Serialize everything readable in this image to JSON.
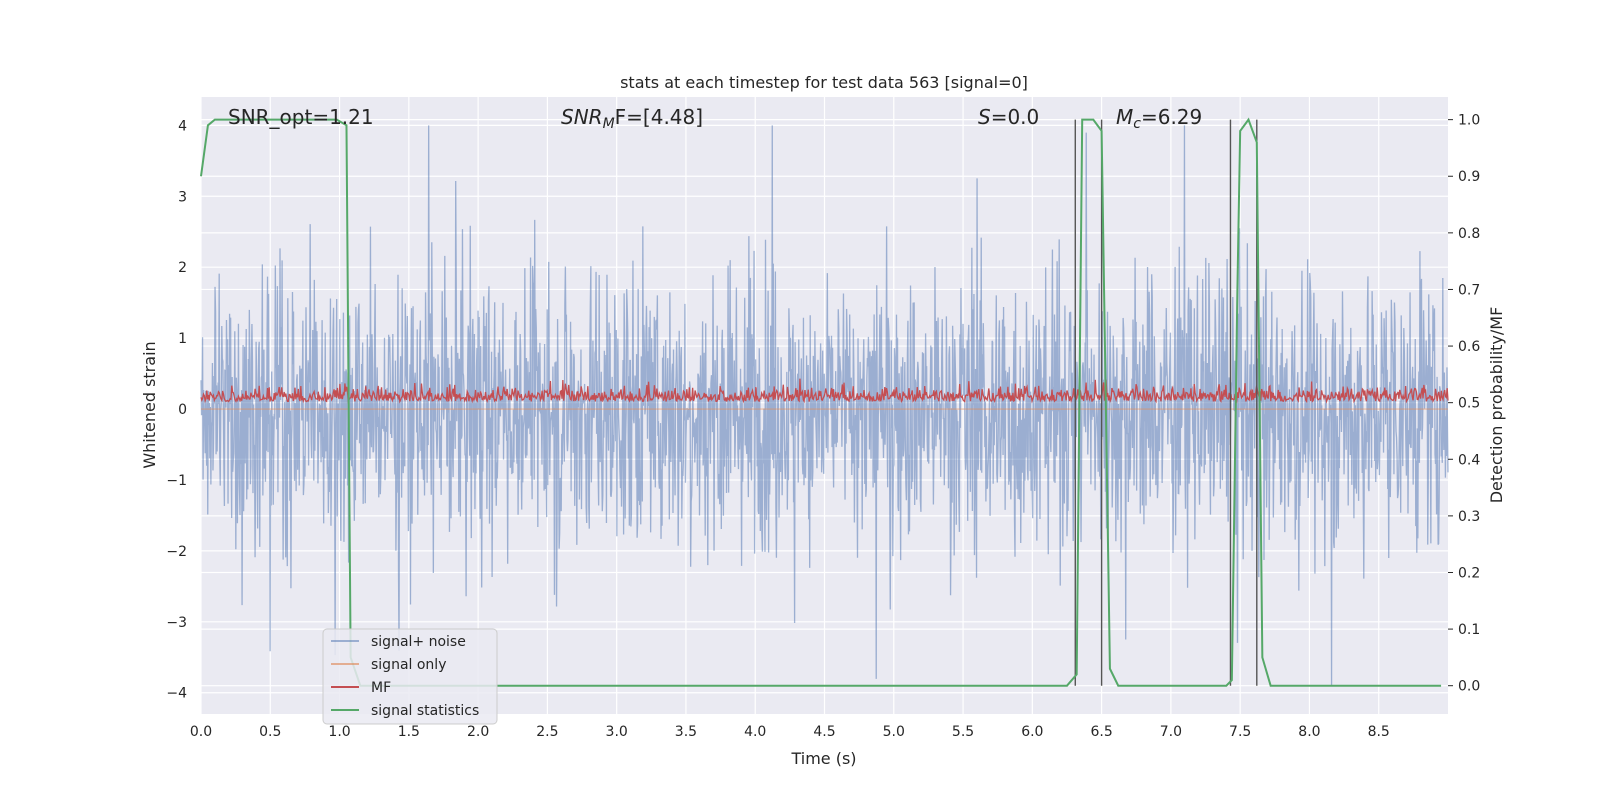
{
  "chart_data": {
    "type": "line",
    "title": "stats at each timestep for test data 563 [signal=0]",
    "xlabel": "Time (s)",
    "ylabel": "Whitened strain",
    "y2label": "Detection probability/MF",
    "xlim": [
      0,
      9.0
    ],
    "ylim": [
      -4.3,
      4.4
    ],
    "y2lim": [
      -0.05,
      1.04
    ],
    "xticks": [
      "0.0",
      "0.5",
      "1.0",
      "1.5",
      "2.0",
      "2.5",
      "3.0",
      "3.5",
      "4.0",
      "4.5",
      "5.0",
      "5.5",
      "6.0",
      "6.5",
      "7.0",
      "7.5",
      "8.0",
      "8.5"
    ],
    "yticks": [
      "−4",
      "−3",
      "−2",
      "−1",
      "0",
      "1",
      "2",
      "3",
      "4"
    ],
    "y2ticks": [
      "0.0",
      "0.1",
      "0.2",
      "0.3",
      "0.4",
      "0.5",
      "0.6",
      "0.7",
      "0.8",
      "0.9",
      "1.0"
    ],
    "grid": true,
    "legend_position": "lower-left",
    "annotations": {
      "snr_opt": "SNR_opt=1.21",
      "snr_mf_sym": "SNR",
      "snr_mf_sub": "M",
      "snr_mf_rest": "F=[4.48]",
      "s_sym": "S",
      "s_rest": "=0.0",
      "mc_sym": "M",
      "mc_sub": "c",
      "mc_rest": "=6.29"
    },
    "series": [
      {
        "name": "signal+ noise",
        "color": "#4c72b0",
        "axis": "left",
        "description_values": "dense noise, sampled at 4096 Hz, amplitude roughly within [-3.9, 4.0]"
      },
      {
        "name": "signal only",
        "color": "#dd8452",
        "axis": "left",
        "x": [
          0,
          9.0
        ],
        "y": [
          0,
          0
        ]
      },
      {
        "name": "MF",
        "color": "#c44e52",
        "axis": "right",
        "description_values": "noisy trace fluctuating between about 0.50 and 0.55 on the right axis"
      },
      {
        "name": "signal statistics",
        "color": "#55a868",
        "axis": "right",
        "x": [
          0.0,
          0.05,
          0.1,
          0.2,
          0.5,
          0.8,
          0.98,
          1.05,
          1.08,
          1.15,
          1.4,
          2.0,
          3.0,
          4.0,
          5.0,
          6.0,
          6.25,
          6.32,
          6.36,
          6.44,
          6.5,
          6.56,
          6.62,
          6.7,
          7.0,
          7.4,
          7.44,
          7.48,
          7.5,
          7.56,
          7.62,
          7.66,
          7.72,
          8.0,
          8.5,
          8.95
        ],
        "y": [
          0.9,
          0.99,
          1.0,
          1.0,
          1.0,
          1.0,
          1.0,
          0.99,
          0.05,
          0.0,
          0.0,
          0.0,
          0.0,
          0.0,
          0.0,
          0.0,
          0.0,
          0.02,
          1.0,
          1.0,
          0.98,
          0.03,
          0.0,
          0.0,
          0.0,
          0.0,
          0.01,
          0.7,
          0.98,
          1.0,
          0.96,
          0.05,
          0.0,
          0.0,
          0.0,
          0.0
        ]
      }
    ],
    "vertical_lines_x": [
      6.31,
      6.5,
      7.43,
      7.62
    ]
  }
}
